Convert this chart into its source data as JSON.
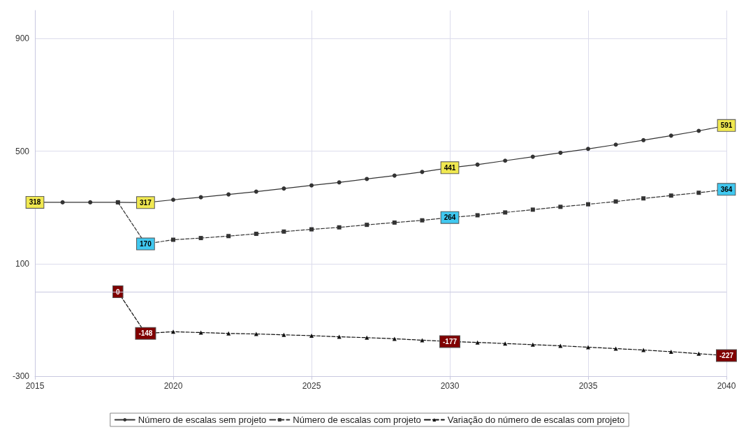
{
  "chart_data": {
    "type": "line",
    "x": [
      2015,
      2016,
      2017,
      2018,
      2019,
      2020,
      2021,
      2022,
      2023,
      2024,
      2025,
      2026,
      2027,
      2028,
      2029,
      2030,
      2031,
      2032,
      2033,
      2034,
      2035,
      2036,
      2037,
      2038,
      2039,
      2040
    ],
    "series": [
      {
        "name": "Número de escalas sem projeto",
        "color": "#333333",
        "marker": "circle",
        "line_style": "solid",
        "values": [
          318,
          318,
          318,
          318,
          317,
          327,
          336,
          346,
          356,
          367,
          378,
          389,
          401,
          413,
          426,
          441,
          452,
          466,
          480,
          494,
          508,
          523,
          539,
          555,
          572,
          591
        ],
        "value_labels": [
          "318",
          null,
          null,
          null,
          "317",
          null,
          null,
          null,
          null,
          null,
          null,
          null,
          null,
          null,
          null,
          "441",
          null,
          null,
          null,
          null,
          null,
          null,
          null,
          null,
          null,
          "591"
        ]
      },
      {
        "name": "Número de escalas com projeto",
        "color": "#333333",
        "marker": "square",
        "line_style": "dashed",
        "values": [
          null,
          null,
          null,
          318,
          170,
          185,
          191,
          198,
          206,
          214,
          222,
          229,
          238,
          246,
          254,
          264,
          272,
          282,
          292,
          302,
          311,
          321,
          332,
          342,
          352,
          364
        ],
        "value_labels": [
          null,
          null,
          null,
          null,
          "170",
          null,
          null,
          null,
          null,
          null,
          null,
          null,
          null,
          null,
          null,
          "264",
          null,
          null,
          null,
          null,
          null,
          null,
          null,
          null,
          null,
          "364"
        ]
      },
      {
        "name": "Variação do número de escalas com projeto",
        "color": "#111111",
        "marker": "triangle",
        "line_style": "dashed",
        "values": [
          null,
          null,
          null,
          0,
          -148,
          -142,
          -145,
          -148,
          -150,
          -153,
          -156,
          -160,
          -163,
          -167,
          -172,
          -177,
          -180,
          -184,
          -188,
          -192,
          -197,
          -202,
          -207,
          -213,
          -220,
          -227
        ],
        "value_labels": [
          null,
          null,
          null,
          "0",
          "-148",
          null,
          null,
          null,
          null,
          null,
          null,
          null,
          null,
          null,
          null,
          "-177",
          null,
          null,
          null,
          null,
          null,
          null,
          null,
          null,
          null,
          "-227"
        ]
      }
    ],
    "xlim": [
      2015,
      2040
    ],
    "xticks": [
      2015,
      2020,
      2025,
      2030,
      2035,
      2040
    ],
    "ylim": [
      -300,
      1000
    ],
    "yticks": [
      -300,
      100,
      500,
      900
    ],
    "ref_lines": [
      {
        "axis": "y",
        "value": 0,
        "color": "#c8c8e0"
      }
    ],
    "grid": true,
    "legend": "bottom"
  }
}
